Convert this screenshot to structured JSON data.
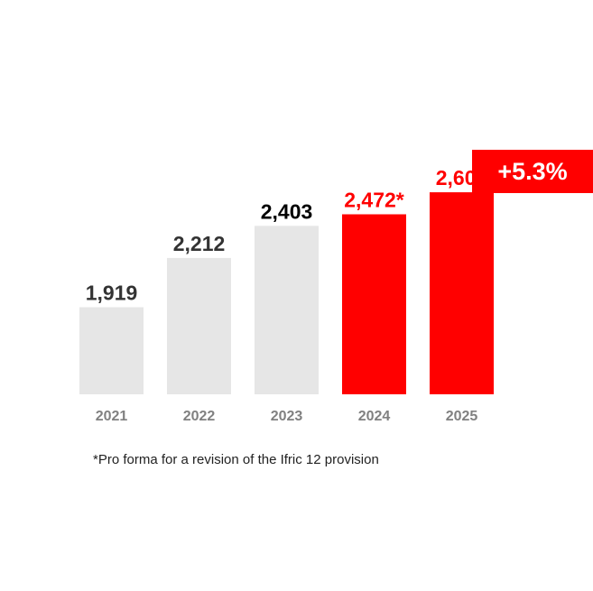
{
  "chart_data": {
    "type": "bar",
    "categories": [
      "2021",
      "2022",
      "2023",
      "2024",
      "2025"
    ],
    "values": [
      1919,
      2212,
      2403,
      2472,
      2603
    ],
    "value_labels": [
      "1,919",
      "2,212",
      "2,403",
      "2,472*",
      "2,603"
    ],
    "highlighted": [
      false,
      false,
      false,
      true,
      true
    ],
    "title": "",
    "xlabel": "",
    "ylabel": "",
    "grid": false,
    "legend": "none"
  },
  "colors": {
    "bar_default": "#e6e6e6",
    "bar_highlight": "#ff0000",
    "label_default": "#333333",
    "label_emphasis": "#000000",
    "label_highlight": "#ff0000",
    "tick_label": "#808080"
  },
  "badge": {
    "label": "+5.3%"
  },
  "footnote": {
    "text": "*Pro forma for a revision of the Ifric 12 provision"
  }
}
